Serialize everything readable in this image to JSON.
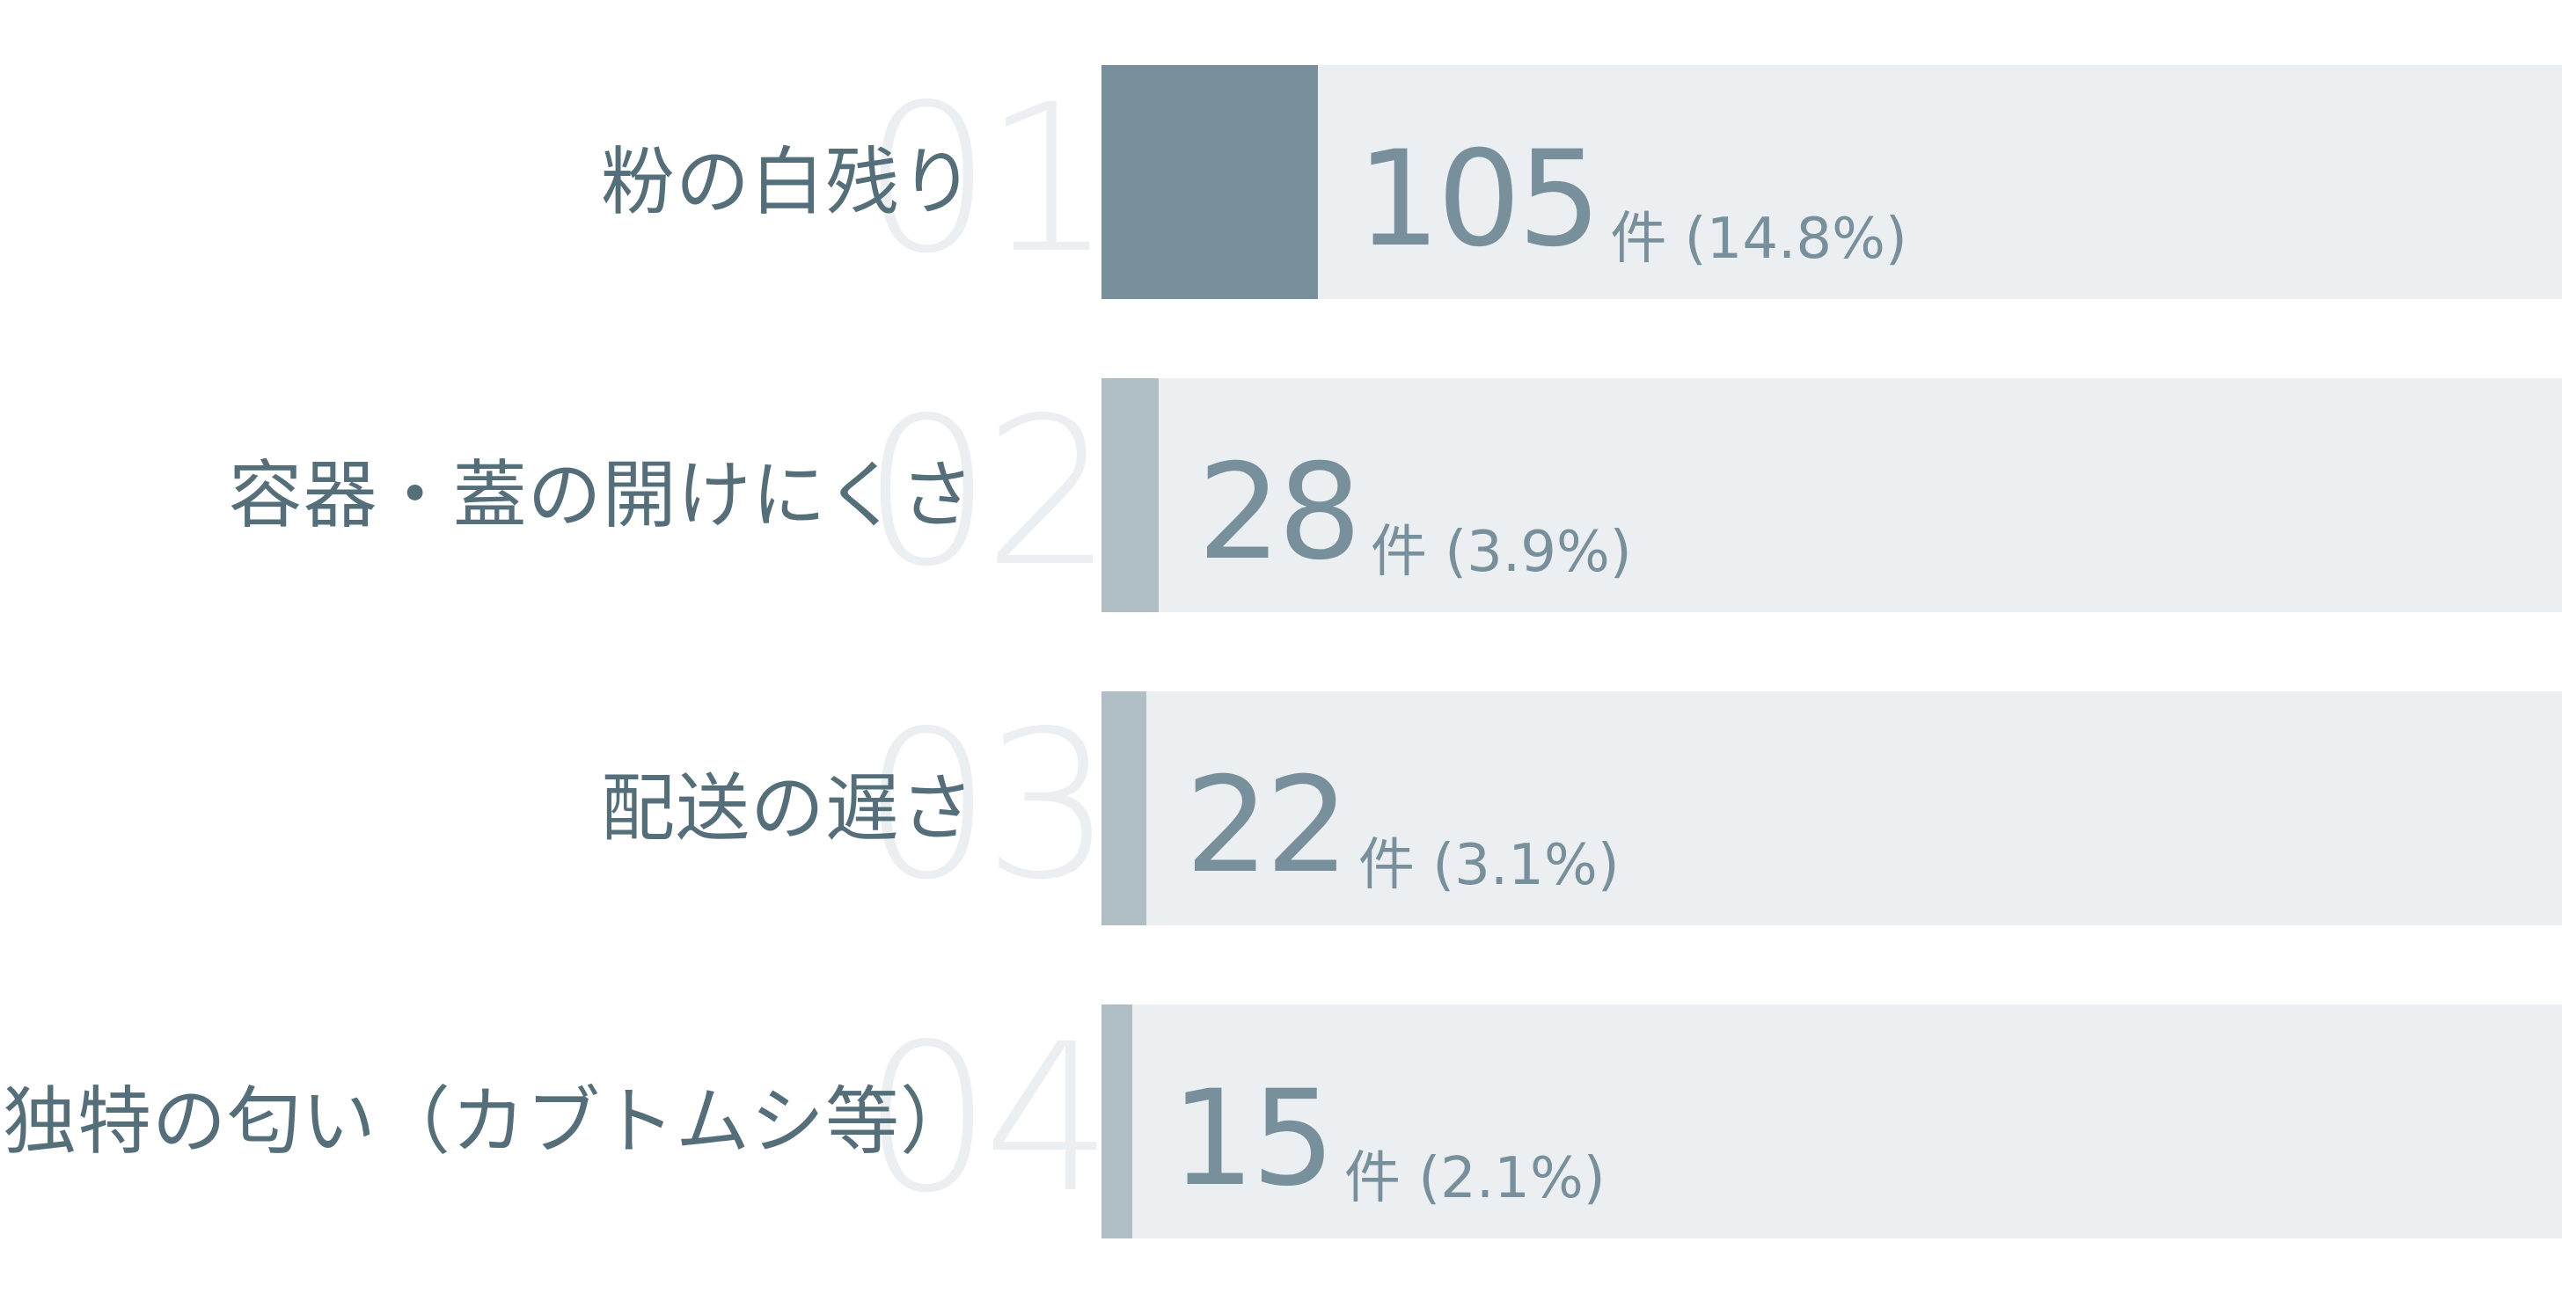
{
  "chart_data": {
    "type": "bar",
    "orientation": "horizontal",
    "categories": [
      "粉の白残り",
      "容器・蓋の開けにくさ",
      "配送の遅さ",
      "独特の匂い（カブトムシ等）"
    ],
    "ranks": [
      "01",
      "02",
      "03",
      "04"
    ],
    "values": [
      105,
      28,
      22,
      15
    ],
    "value_labels": [
      "105",
      "28",
      "22",
      "15"
    ],
    "unit_labels": [
      "件 (14.8%)",
      "件 (3.9%)",
      "件 (3.1%)",
      "件 (2.1%)"
    ],
    "percentages": [
      14.8,
      3.9,
      3.1,
      2.1
    ],
    "xlim": [
      0,
      100
    ],
    "grid": false,
    "colors": {
      "top_bar": "#78909c",
      "other_bars": "#b0bec5",
      "track": "#eceff1",
      "label_text": "#546e7a",
      "value_text": "#78909c",
      "rank_text": "#eceff1"
    }
  }
}
